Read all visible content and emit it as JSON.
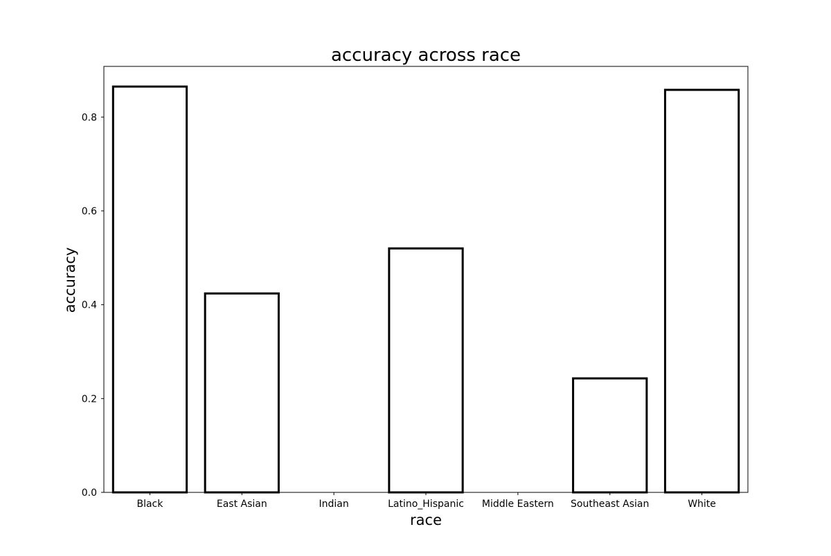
{
  "chart_data": {
    "type": "bar",
    "title": "accuracy across race",
    "xlabel": "race",
    "ylabel": "accuracy",
    "categories": [
      "Black",
      "East Asian",
      "Indian",
      "Latino_Hispanic",
      "Middle Eastern",
      "Southeast Asian",
      "White"
    ],
    "values": [
      0.865,
      0.424,
      0.0,
      0.52,
      0.0,
      0.243,
      0.858
    ],
    "ylim": [
      0,
      0.908
    ],
    "yticks": [
      0.0,
      0.2,
      0.4,
      0.6,
      0.8
    ],
    "ytick_labels": [
      "0.0",
      "0.2",
      "0.4",
      "0.6",
      "0.8"
    ],
    "grid": false,
    "bar_fill": "#ffffff",
    "bar_edge": "#000000"
  }
}
